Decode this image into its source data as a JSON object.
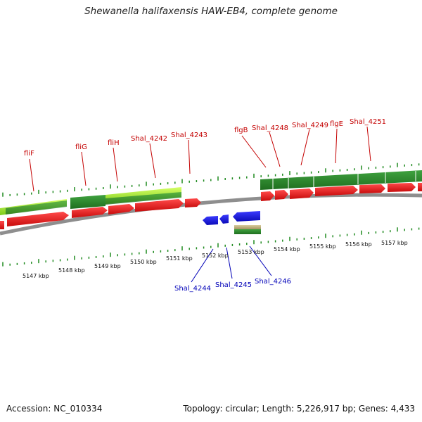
{
  "title": "Shewanella halifaxensis HAW-EB4, complete genome",
  "footer": {
    "accession": "Accession: NC_010334",
    "topology": "Topology: circular; Length: 5,226,917 bp; Genes: 4,433"
  },
  "colors": {
    "gene_forward": "#e8181b",
    "gene_reverse": "#1d1de0",
    "label_forward": "#c40000",
    "label_reverse": "#0000b8",
    "cds_dark": "#2e8b2e",
    "cds_light": "#9ae12a",
    "cds_tan": "#b9ab7a",
    "tick": "#1f8a1f",
    "backbone": "#8e8e8e"
  },
  "scale_labels": [
    "5147 kbp",
    "5148 kbp",
    "5149 kbp",
    "5150 kbp",
    "5151 kbp",
    "5152 kbp",
    "5153 kbp",
    "5154 kbp",
    "5155 kbp",
    "5156 kbp",
    "5157 kbp"
  ],
  "gene_labels_top": [
    "fliF",
    "fliG",
    "fliH",
    "Shal_4242",
    "Shal_4243",
    "flgB",
    "Shal_4248",
    "Shal_4249",
    "flgE",
    "Shal_4251"
  ],
  "gene_labels_bottom": [
    "Shal_4244",
    "Shal_4245",
    "Shal_4246"
  ]
}
